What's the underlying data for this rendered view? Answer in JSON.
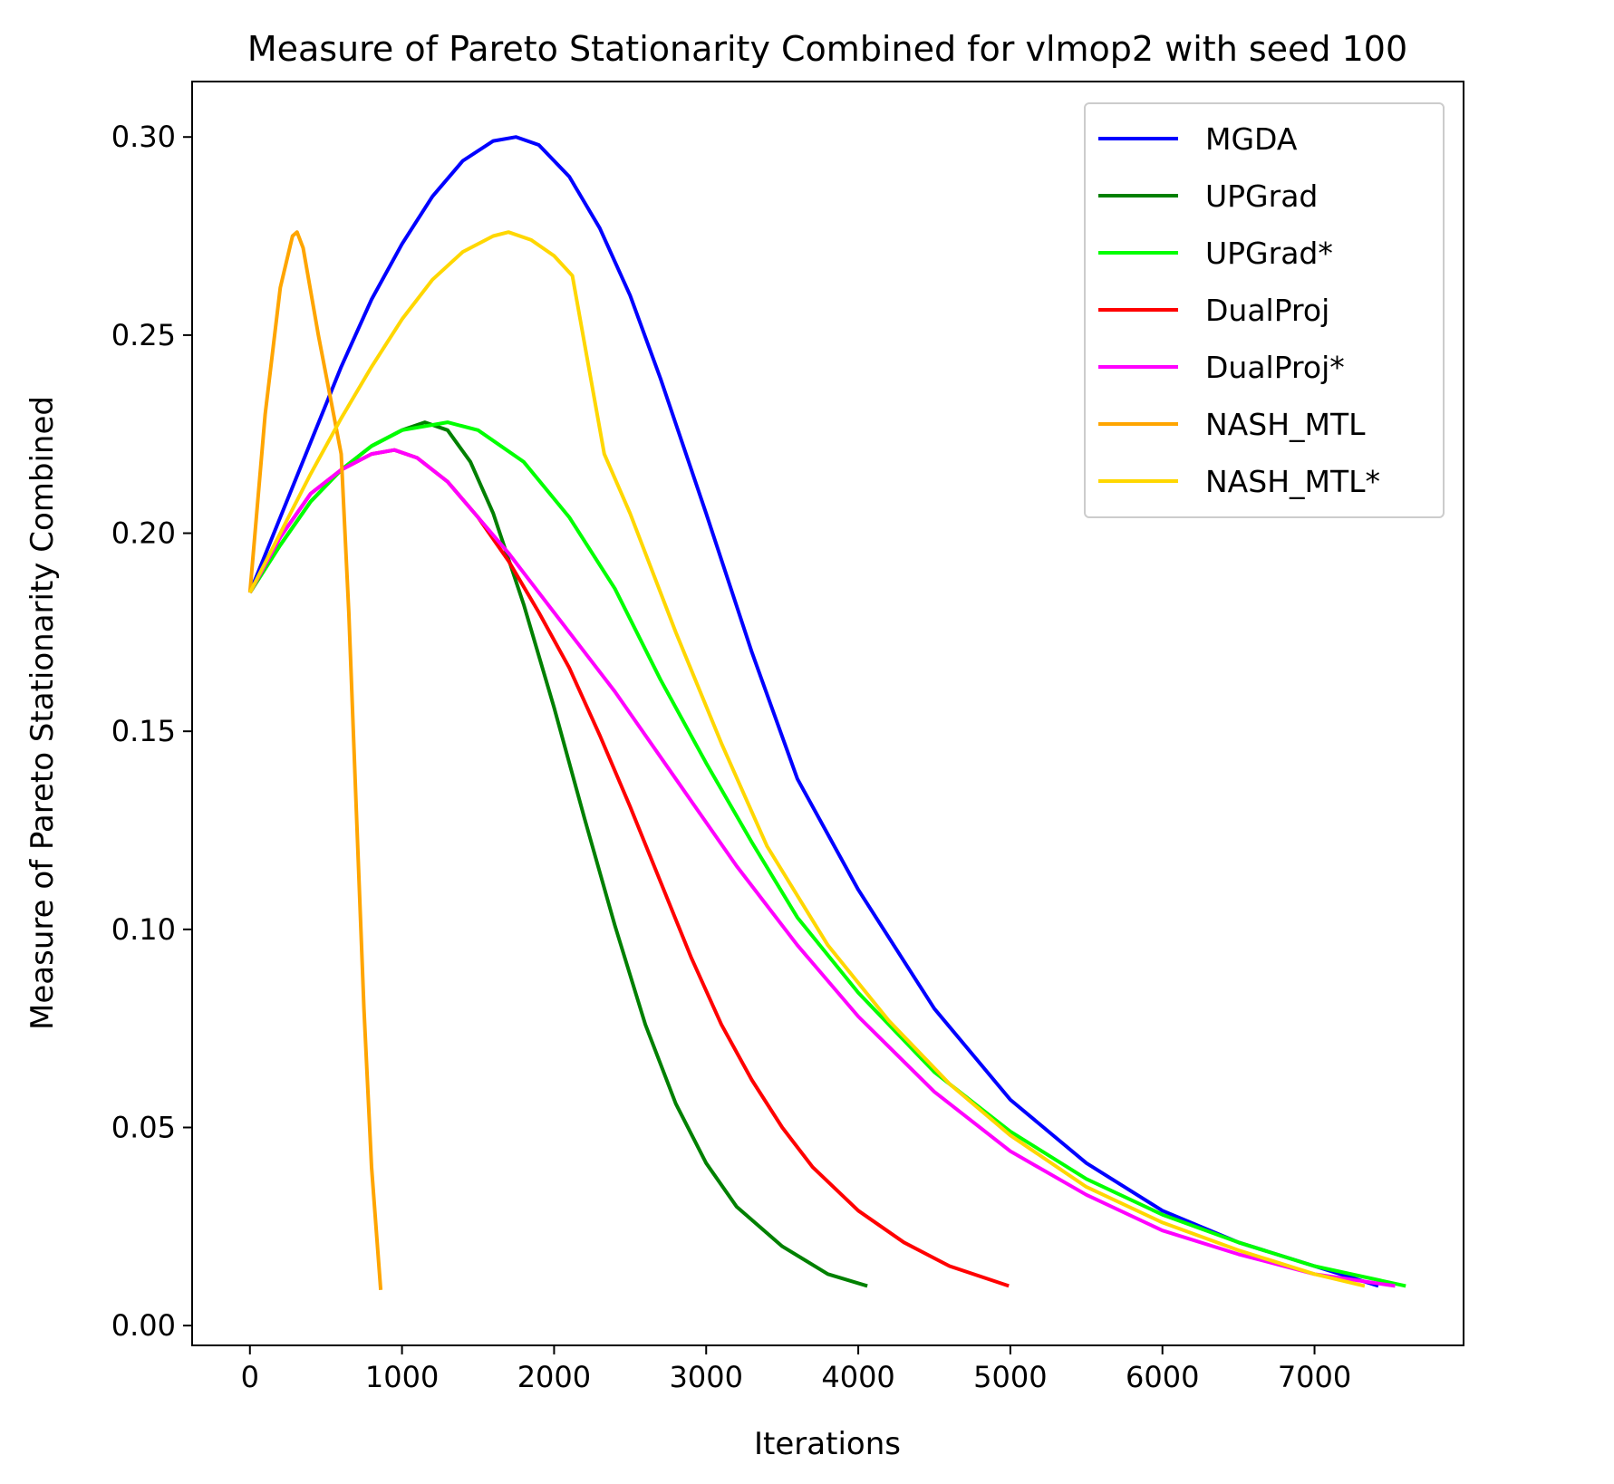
{
  "chart_data": {
    "type": "line",
    "title": "Measure of Pareto Stationarity Combined for vlmop2 with seed 100",
    "xlabel": "Iterations",
    "ylabel": "Measure of Pareto Stationarity Combined",
    "xlim": [
      -380,
      7980
    ],
    "ylim": [
      -0.005,
      0.314
    ],
    "xticks": [
      0,
      1000,
      2000,
      3000,
      4000,
      5000,
      6000,
      7000
    ],
    "xtick_labels": [
      "0",
      "1000",
      "2000",
      "3000",
      "4000",
      "5000",
      "6000",
      "7000"
    ],
    "yticks": [
      0.0,
      0.05,
      0.1,
      0.15,
      0.2,
      0.25,
      0.3
    ],
    "ytick_labels": [
      "0.00",
      "0.05",
      "0.10",
      "0.15",
      "0.20",
      "0.25",
      "0.30"
    ],
    "grid": false,
    "legend_position": "upper right",
    "series": [
      {
        "name": "MGDA",
        "color": "#0000ff",
        "points": [
          [
            0,
            0.185
          ],
          [
            200,
            0.204
          ],
          [
            400,
            0.223
          ],
          [
            600,
            0.242
          ],
          [
            800,
            0.259
          ],
          [
            1000,
            0.273
          ],
          [
            1200,
            0.285
          ],
          [
            1400,
            0.294
          ],
          [
            1600,
            0.299
          ],
          [
            1750,
            0.3
          ],
          [
            1900,
            0.298
          ],
          [
            2100,
            0.29
          ],
          [
            2300,
            0.277
          ],
          [
            2500,
            0.26
          ],
          [
            2700,
            0.239
          ],
          [
            3000,
            0.205
          ],
          [
            3300,
            0.17
          ],
          [
            3600,
            0.138
          ],
          [
            4000,
            0.11
          ],
          [
            4500,
            0.08
          ],
          [
            5000,
            0.057
          ],
          [
            5500,
            0.041
          ],
          [
            6000,
            0.029
          ],
          [
            6500,
            0.021
          ],
          [
            7000,
            0.015
          ],
          [
            7420,
            0.01
          ]
        ]
      },
      {
        "name": "UPGrad",
        "color": "#008000",
        "points": [
          [
            0,
            0.185
          ],
          [
            200,
            0.197
          ],
          [
            400,
            0.208
          ],
          [
            600,
            0.216
          ],
          [
            800,
            0.222
          ],
          [
            1000,
            0.226
          ],
          [
            1150,
            0.228
          ],
          [
            1300,
            0.226
          ],
          [
            1450,
            0.218
          ],
          [
            1600,
            0.205
          ],
          [
            1800,
            0.182
          ],
          [
            2000,
            0.156
          ],
          [
            2200,
            0.128
          ],
          [
            2400,
            0.101
          ],
          [
            2600,
            0.076
          ],
          [
            2800,
            0.056
          ],
          [
            3000,
            0.041
          ],
          [
            3200,
            0.03
          ],
          [
            3500,
            0.02
          ],
          [
            3800,
            0.013
          ],
          [
            4060,
            0.01
          ]
        ]
      },
      {
        "name": "UPGrad*",
        "color": "#00ff00",
        "points": [
          [
            0,
            0.185
          ],
          [
            200,
            0.197
          ],
          [
            400,
            0.208
          ],
          [
            600,
            0.216
          ],
          [
            800,
            0.222
          ],
          [
            1000,
            0.226
          ],
          [
            1300,
            0.228
          ],
          [
            1500,
            0.226
          ],
          [
            1800,
            0.218
          ],
          [
            2100,
            0.204
          ],
          [
            2400,
            0.186
          ],
          [
            2700,
            0.163
          ],
          [
            3000,
            0.142
          ],
          [
            3300,
            0.122
          ],
          [
            3600,
            0.103
          ],
          [
            4000,
            0.084
          ],
          [
            4500,
            0.064
          ],
          [
            5000,
            0.049
          ],
          [
            5500,
            0.037
          ],
          [
            6000,
            0.028
          ],
          [
            6500,
            0.021
          ],
          [
            7000,
            0.015
          ],
          [
            7600,
            0.01
          ]
        ]
      },
      {
        "name": "DualProj",
        "color": "#ff0000",
        "points": [
          [
            0,
            0.185
          ],
          [
            200,
            0.199
          ],
          [
            400,
            0.21
          ],
          [
            600,
            0.216
          ],
          [
            800,
            0.22
          ],
          [
            950,
            0.221
          ],
          [
            1100,
            0.219
          ],
          [
            1300,
            0.213
          ],
          [
            1500,
            0.204
          ],
          [
            1700,
            0.193
          ],
          [
            1900,
            0.18
          ],
          [
            2100,
            0.166
          ],
          [
            2300,
            0.149
          ],
          [
            2500,
            0.131
          ],
          [
            2700,
            0.112
          ],
          [
            2900,
            0.093
          ],
          [
            3100,
            0.076
          ],
          [
            3300,
            0.062
          ],
          [
            3500,
            0.05
          ],
          [
            3700,
            0.04
          ],
          [
            4000,
            0.029
          ],
          [
            4300,
            0.021
          ],
          [
            4600,
            0.015
          ],
          [
            4990,
            0.01
          ]
        ]
      },
      {
        "name": "DualProj*",
        "color": "#ff00ff",
        "points": [
          [
            0,
            0.185
          ],
          [
            200,
            0.199
          ],
          [
            400,
            0.21
          ],
          [
            600,
            0.216
          ],
          [
            800,
            0.22
          ],
          [
            950,
            0.221
          ],
          [
            1100,
            0.219
          ],
          [
            1300,
            0.213
          ],
          [
            1500,
            0.204
          ],
          [
            1700,
            0.195
          ],
          [
            2000,
            0.18
          ],
          [
            2400,
            0.16
          ],
          [
            2800,
            0.138
          ],
          [
            3200,
            0.116
          ],
          [
            3600,
            0.096
          ],
          [
            4000,
            0.078
          ],
          [
            4500,
            0.059
          ],
          [
            5000,
            0.044
          ],
          [
            5500,
            0.033
          ],
          [
            6000,
            0.024
          ],
          [
            6500,
            0.018
          ],
          [
            7000,
            0.013
          ],
          [
            7530,
            0.01
          ]
        ]
      },
      {
        "name": "NASH_MTL",
        "color": "#ffa500",
        "points": [
          [
            0,
            0.185
          ],
          [
            100,
            0.23
          ],
          [
            200,
            0.262
          ],
          [
            280,
            0.275
          ],
          [
            310,
            0.276
          ],
          [
            350,
            0.272
          ],
          [
            450,
            0.25
          ],
          [
            550,
            0.23
          ],
          [
            600,
            0.22
          ],
          [
            650,
            0.18
          ],
          [
            700,
            0.13
          ],
          [
            750,
            0.08
          ],
          [
            800,
            0.04
          ],
          [
            860,
            0.009
          ]
        ]
      },
      {
        "name": "NASH_MTL*",
        "color": "#ffd700",
        "points": [
          [
            0,
            0.185
          ],
          [
            200,
            0.2
          ],
          [
            400,
            0.215
          ],
          [
            600,
            0.229
          ],
          [
            800,
            0.242
          ],
          [
            1000,
            0.254
          ],
          [
            1200,
            0.264
          ],
          [
            1400,
            0.271
          ],
          [
            1600,
            0.275
          ],
          [
            1700,
            0.276
          ],
          [
            1850,
            0.274
          ],
          [
            2000,
            0.27
          ],
          [
            2120,
            0.265
          ],
          [
            2330,
            0.22
          ],
          [
            2500,
            0.205
          ],
          [
            2800,
            0.175
          ],
          [
            3100,
            0.147
          ],
          [
            3400,
            0.121
          ],
          [
            3800,
            0.096
          ],
          [
            4200,
            0.077
          ],
          [
            4600,
            0.061
          ],
          [
            5000,
            0.048
          ],
          [
            5500,
            0.035
          ],
          [
            6000,
            0.026
          ],
          [
            6500,
            0.019
          ],
          [
            7000,
            0.013
          ],
          [
            7330,
            0.01
          ]
        ]
      }
    ]
  }
}
